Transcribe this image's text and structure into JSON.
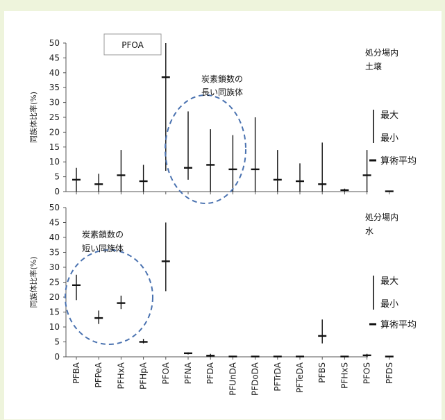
{
  "chart_data": [
    {
      "type": "error-bar",
      "categories": [
        "PFBA",
        "PFPeA",
        "PFHxA",
        "PFHpA",
        "PFOA",
        "PFNA",
        "PFDA",
        "PFUnDA",
        "PFDoDA",
        "PFTrDA",
        "PFTeDA",
        "PFBS",
        "PFHxS",
        "PFOS",
        "PFDS"
      ],
      "ylabel": "同族体比率(%)",
      "ylim": [
        0,
        50
      ],
      "yticks": [
        0,
        5,
        10,
        15,
        20,
        25,
        30,
        35,
        40,
        45,
        50
      ],
      "box_title": "PFOA",
      "corner_note": [
        "処分場内",
        "土壌"
      ],
      "ellipse_note": [
        "炭素鎖数の",
        "長い同族体"
      ],
      "series": [
        {
          "name": "最大",
          "values": [
            8,
            6,
            14,
            9,
            50,
            27,
            21,
            19,
            25,
            14,
            9.5,
            16.5,
            1,
            14,
            0.3
          ]
        },
        {
          "name": "最小",
          "values": [
            0,
            0,
            0,
            0,
            7,
            4,
            0,
            0,
            0,
            0,
            0,
            0,
            0,
            0,
            0
          ]
        },
        {
          "name": "算術平均",
          "values": [
            4,
            2.5,
            5.5,
            3.5,
            38.5,
            8,
            9,
            7.5,
            7.5,
            4,
            3.5,
            2.5,
            0.5,
            5.5,
            0.1
          ]
        }
      ]
    },
    {
      "type": "error-bar",
      "categories": [
        "PFBA",
        "PFPeA",
        "PFHxA",
        "PFHpA",
        "PFOA",
        "PFNA",
        "PFDA",
        "PFUnDA",
        "PFDoDA",
        "PFTrDA",
        "PFTeDA",
        "PFBS",
        "PFHxS",
        "PFOS",
        "PFDS"
      ],
      "ylabel": "同族体比率(%)",
      "ylim": [
        0,
        50
      ],
      "yticks": [
        0,
        5,
        10,
        15,
        20,
        25,
        30,
        35,
        40,
        45,
        50
      ],
      "corner_note": [
        "処分場内",
        "水"
      ],
      "ellipse_note": [
        "炭素鎖数の",
        "短い同族体"
      ],
      "series": [
        {
          "name": "最大",
          "values": [
            27.5,
            15.5,
            20.5,
            6,
            45,
            1.5,
            1,
            0.2,
            0.2,
            0.2,
            0.2,
            12.5,
            0.2,
            1,
            0.2
          ]
        },
        {
          "name": "最小",
          "values": [
            19,
            11,
            16,
            4.5,
            22,
            0.8,
            0,
            0,
            0,
            0,
            0,
            4.5,
            0,
            0,
            0
          ]
        },
        {
          "name": "算術平均",
          "values": [
            24,
            13,
            18,
            5,
            32,
            1.2,
            0.4,
            0.1,
            0.1,
            0.1,
            0.1,
            7,
            0.1,
            0.5,
            0.1
          ]
        }
      ]
    }
  ],
  "legend": {
    "max_label": "最大",
    "min_label": "最小",
    "mean_label": "算術平均"
  },
  "colors": {
    "background": "#eef4dc",
    "bars": "#111111",
    "ellipse": "#4a72b0",
    "box_border": "#999999"
  }
}
